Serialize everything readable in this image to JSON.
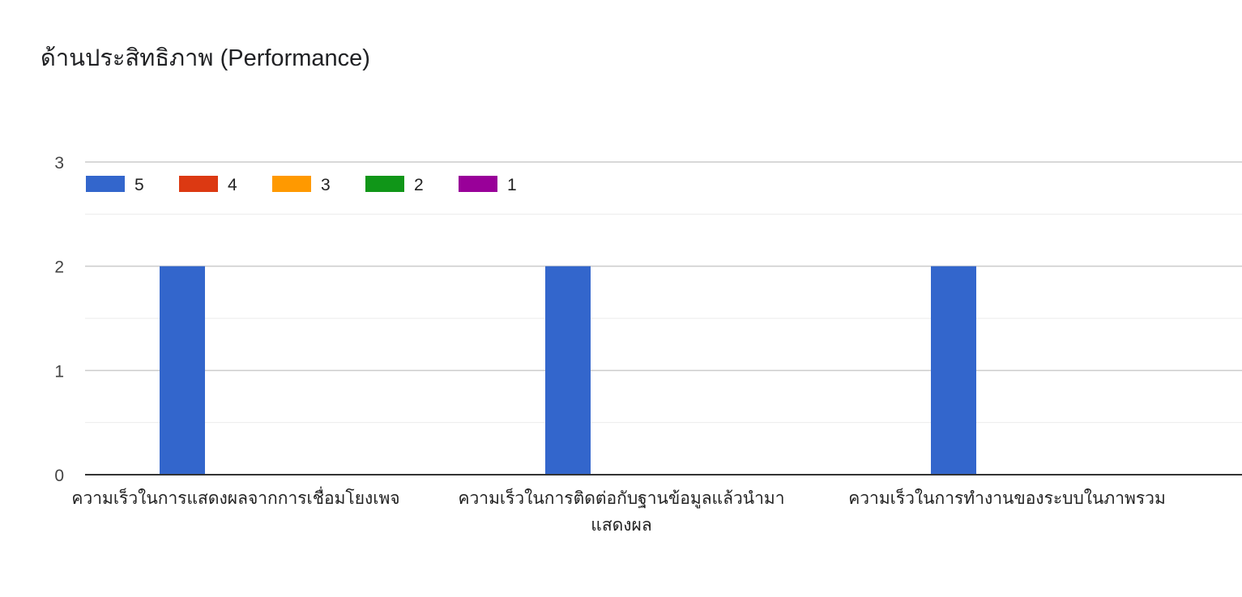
{
  "chart_data": {
    "type": "bar",
    "title": "ด้านประสิทธิภาพ (Performance)",
    "xlabel": "",
    "ylabel": "",
    "ylim": [
      0,
      3
    ],
    "yticks": [
      0,
      1,
      2,
      3
    ],
    "grid": true,
    "legend_position": "top-left",
    "categories": [
      [
        "ความเร็วในการแสดงผลจากการเชื่อมโยงเพจ"
      ],
      [
        "ความเร็วในการติดต่อกับฐานข้อมูลแล้วนำมา",
        "แสดงผล"
      ],
      [
        "ความเร็วในการทำงานของระบบในภาพรวม"
      ]
    ],
    "series": [
      {
        "name": "5",
        "color": "#3366cc",
        "values": [
          2,
          2,
          2
        ]
      },
      {
        "name": "4",
        "color": "#dc3912",
        "values": [
          0,
          0,
          0
        ]
      },
      {
        "name": "3",
        "color": "#ff9900",
        "values": [
          0,
          0,
          0
        ]
      },
      {
        "name": "2",
        "color": "#109618",
        "values": [
          0,
          0,
          0
        ]
      },
      {
        "name": "1",
        "color": "#990099",
        "values": [
          0,
          0,
          0
        ]
      }
    ]
  }
}
